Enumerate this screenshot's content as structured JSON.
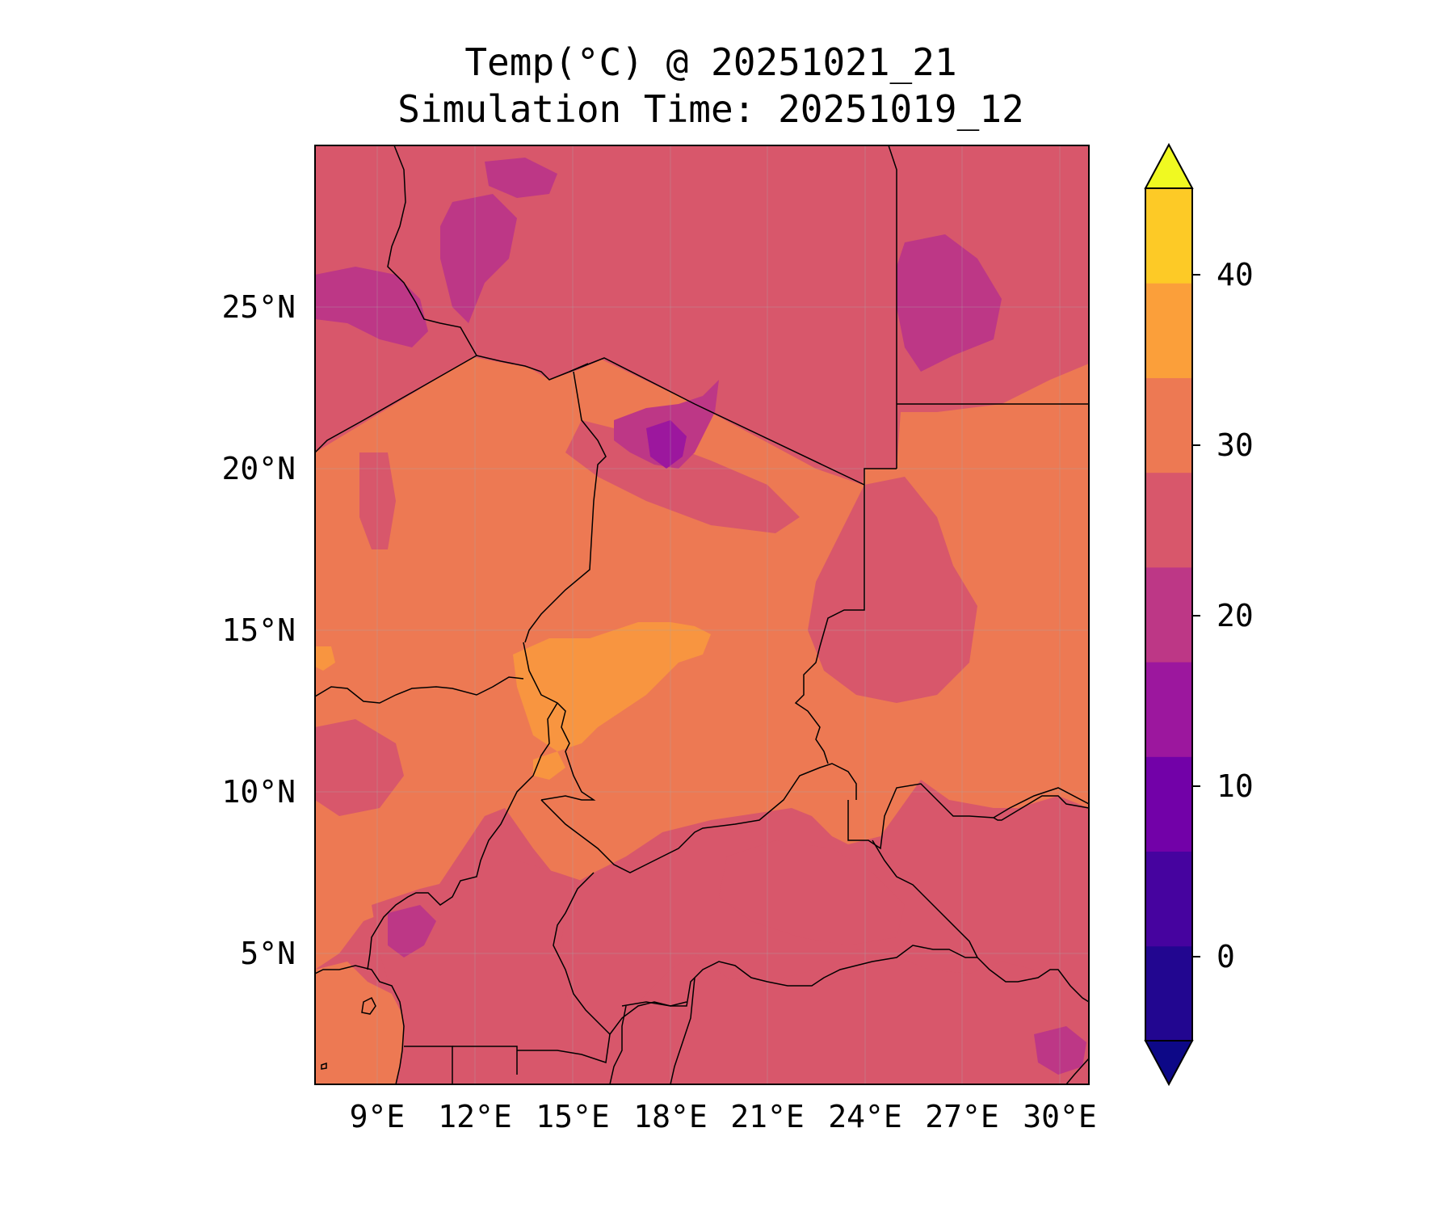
{
  "title": {
    "line1": "Temp(°C) @ 20251021_21",
    "line2": "Simulation Time: 20251019_12"
  },
  "map": {
    "lat_labels": [
      "25°N",
      "20°N",
      "15°N",
      "10°N",
      "5°N"
    ],
    "lon_labels": [
      "9°E",
      "12°E",
      "15°E",
      "18°E",
      "21°E",
      "24°E",
      "27°E",
      "30°E"
    ],
    "lon_range": [
      7,
      31
    ],
    "lat_range": [
      1,
      30
    ]
  },
  "colorbar": {
    "tick_labels": [
      "40",
      "30",
      "20",
      "10",
      "0"
    ],
    "levels": [
      -5,
      0,
      5,
      10,
      15,
      20,
      25,
      30,
      35,
      40,
      45
    ],
    "colors": [
      "#0d0887",
      "#220690",
      "#46039f",
      "#7201a8",
      "#9c179e",
      "#bd3786",
      "#d8576b",
      "#ed7953",
      "#fb9f3a",
      "#fdca26",
      "#f0f921"
    ],
    "extend": "both"
  },
  "colors": {
    "background_field": "#d8576b",
    "warm_field": "#ed7953",
    "hot_field": "#f89540",
    "cool_field": "#bd3786",
    "cold_field": "#9c179e",
    "border": "#000000"
  }
}
